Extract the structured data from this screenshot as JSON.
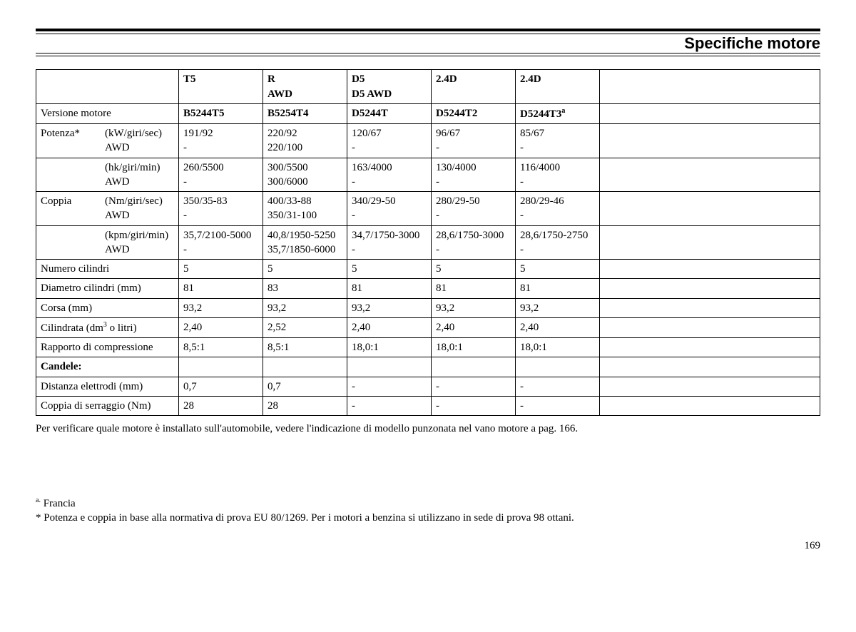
{
  "page": {
    "title": "Specifiche motore",
    "number": "169"
  },
  "table": {
    "header": {
      "col1": "T5",
      "col2a": "R",
      "col2b": "AWD",
      "col3a": "D5",
      "col3b": "D5 AWD",
      "col4": "2.4D",
      "col5": "2.4D"
    },
    "versione": {
      "label": "Versione motore",
      "c1": "B5244T5",
      "c2": "B5254T4",
      "c3": "D5244T",
      "c4": "D5244T2",
      "c5": "D5244T3",
      "c5sup": "a"
    },
    "potenza_kw": {
      "label": "Potenza*",
      "sub1": "(kW/giri/sec)",
      "sub2": "AWD",
      "c1a": "191/92",
      "c1b": "-",
      "c2a": "220/92",
      "c2b": "220/100",
      "c3a": "120/67",
      "c3b": "-",
      "c4a": "96/67",
      "c4b": "-",
      "c5a": "85/67",
      "c5b": "-"
    },
    "potenza_hk": {
      "sub1": "(hk/giri/min)",
      "sub2": "AWD",
      "c1a": "260/5500",
      "c1b": "-",
      "c2a": "300/5500",
      "c2b": "300/6000",
      "c3a": "163/4000",
      "c3b": "-",
      "c4a": "130/4000",
      "c4b": "-",
      "c5a": "116/4000",
      "c5b": "-"
    },
    "coppia_nm": {
      "label": "Coppia",
      "sub1": "(Nm/giri/sec)",
      "sub2": "AWD",
      "c1a": "350/35-83",
      "c1b": "-",
      "c2a": "400/33-88",
      "c2b": "350/31-100",
      "c3a": "340/29-50",
      "c3b": "-",
      "c4a": "280/29-50",
      "c4b": "-",
      "c5a": "280/29-46",
      "c5b": "-"
    },
    "coppia_kpm": {
      "sub1": "(kpm/giri/min)",
      "sub2": "AWD",
      "c1a": "35,7/2100-5000",
      "c1b": "-",
      "c2a": "40,8/1950-5250",
      "c2b": "35,7/1850-6000",
      "c3a": "34,7/1750-3000",
      "c3b": "-",
      "c4a": "28,6/1750-3000",
      "c4b": "-",
      "c5a": "28,6/1750-2750",
      "c5b": "-"
    },
    "cilindri": {
      "label": "Numero cilindri",
      "c1": "5",
      "c2": "5",
      "c3": "5",
      "c4": "5",
      "c5": "5"
    },
    "diametro": {
      "label": "Diametro cilindri (mm)",
      "c1": "81",
      "c2": "83",
      "c3": "81",
      "c4": "81",
      "c5": "81"
    },
    "corsa": {
      "label": "Corsa (mm)",
      "c1": "93,2",
      "c2": "93,2",
      "c3": "93,2",
      "c4": "93,2",
      "c5": "93,2"
    },
    "cilindrata": {
      "label_a": "Cilindrata (dm",
      "label_sup": "3",
      "label_b": " o litri)",
      "c1": "2,40",
      "c2": "2,52",
      "c3": "2,40",
      "c4": "2,40",
      "c5": "2,40"
    },
    "rapporto": {
      "label": "Rapporto di compressione",
      "c1": "8,5:1",
      "c2": "8,5:1",
      "c3": "18,0:1",
      "c4": "18,0:1",
      "c5": "18,0:1"
    },
    "candele": {
      "label": "Candele:"
    },
    "distanza": {
      "label": "Distanza elettrodi (mm)",
      "c1": "0,7",
      "c2": "0,7",
      "c3": "-",
      "c4": "-",
      "c5": "-"
    },
    "serraggio": {
      "label": "Coppia di serraggio (Nm)",
      "c1": "28",
      "c2": "28",
      "c3": "-",
      "c4": "-",
      "c5": "-"
    }
  },
  "note": "Per verificare quale motore è installato sull'automobile, vedere l'indicazione di modello punzonata nel vano motore a pag. 166.",
  "footnotes": {
    "a_sup": "a.",
    "a": "Francia",
    "star": "*  Potenza e coppia in base alla normativa di prova EU 80/1269. Per i motori a benzina si utilizzano in sede di prova 98 ottani."
  }
}
